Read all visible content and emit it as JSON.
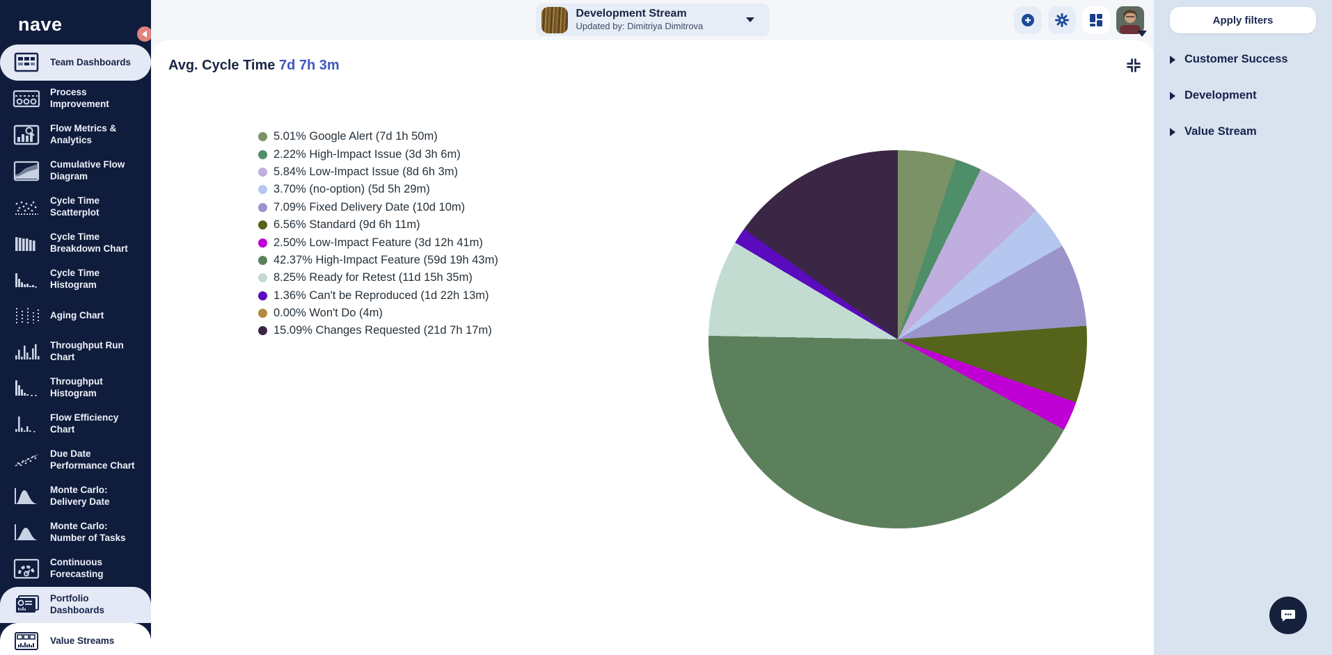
{
  "sidebar": {
    "logo": "nave",
    "items": [
      {
        "label": "Team Dashboards",
        "icon": "team-dashboards-icon",
        "active": true
      },
      {
        "label": "Process Improvement",
        "icon": "process-improvement-icon"
      },
      {
        "label": "Flow Metrics & Analytics",
        "icon": "flow-metrics-icon"
      },
      {
        "label": "Cumulative Flow Diagram",
        "icon": "cumulative-flow-icon"
      },
      {
        "label": "Cycle Time Scatterplot",
        "icon": "cycle-time-scatterplot-icon"
      },
      {
        "label": "Cycle Time Breakdown Chart",
        "icon": "cycle-time-breakdown-icon"
      },
      {
        "label": "Cycle Time Histogram",
        "icon": "cycle-time-histogram-icon"
      },
      {
        "label": "Aging Chart",
        "icon": "aging-chart-icon"
      },
      {
        "label": "Throughput Run Chart",
        "icon": "throughput-run-icon"
      },
      {
        "label": "Throughput Histogram",
        "icon": "throughput-histogram-icon"
      },
      {
        "label": "Flow Efficiency Chart",
        "icon": "flow-efficiency-icon"
      },
      {
        "label": "Due Date Performance Chart",
        "icon": "due-date-performance-icon"
      },
      {
        "label": "Monte Carlo: Delivery Date",
        "icon": "monte-carlo-delivery-icon"
      },
      {
        "label": "Monte Carlo: Number of Tasks",
        "icon": "monte-carlo-tasks-icon"
      },
      {
        "label": "Continuous Forecasting",
        "icon": "continuous-forecasting-icon"
      },
      {
        "label": "Portfolio Dashboards",
        "icon": "portfolio-dashboards-icon",
        "active": true,
        "variant": "light"
      },
      {
        "label": "Value Streams",
        "icon": "value-streams-icon",
        "active": true,
        "variant": "white"
      }
    ]
  },
  "topbar": {
    "board_name": "Development Stream",
    "board_meta": "Updated by: Dimitriya Dimitrova"
  },
  "chart": {
    "title": "Avg. Cycle Time",
    "value": "7d 7h 3m"
  },
  "chart_data": {
    "type": "pie",
    "title": "Avg. Cycle Time",
    "total_label": "7d 7h 3m",
    "legend_position": "left",
    "start_angle_deg": 0,
    "direction": "clockwise",
    "items": [
      {
        "label": "Google Alert",
        "pct": 5.01,
        "duration": "7d 1h 50m",
        "color": "#7b9166"
      },
      {
        "label": "High-Impact Issue",
        "pct": 2.22,
        "duration": "3d 3h 6m",
        "color": "#4e8e68"
      },
      {
        "label": "Low-Impact Issue",
        "pct": 5.84,
        "duration": "8d 6h 3m",
        "color": "#bfaede"
      },
      {
        "label": "(no-option)",
        "pct": 3.7,
        "duration": "5d 5h 29m",
        "color": "#b6c7ef"
      },
      {
        "label": "Fixed Delivery Date",
        "pct": 7.09,
        "duration": "10d 10m",
        "color": "#9a94cb"
      },
      {
        "label": "Standard",
        "pct": 6.56,
        "duration": "9d 6h 11m",
        "color": "#55641a"
      },
      {
        "label": "Low-Impact Feature",
        "pct": 2.5,
        "duration": "3d 12h 41m",
        "color": "#bf00d4"
      },
      {
        "label": "High-Impact Feature",
        "pct": 42.37,
        "duration": "59d 19h 43m",
        "color": "#5d805c"
      },
      {
        "label": "Ready for Retest",
        "pct": 8.25,
        "duration": "11d 15h 35m",
        "color": "#c2dcd1"
      },
      {
        "label": "Can't be Reproduced",
        "pct": 1.36,
        "duration": "1d 22h 13m",
        "color": "#5a0bbd"
      },
      {
        "label": "Won't Do",
        "pct": 0.0,
        "duration": "4m",
        "color": "#b3873d"
      },
      {
        "label": "Changes Requested",
        "pct": 15.09,
        "duration": "21d 7h 17m",
        "color": "#3b2745"
      }
    ]
  },
  "filters": {
    "apply_label": "Apply filters",
    "sections": [
      {
        "label": "Customer Success"
      },
      {
        "label": "Development"
      },
      {
        "label": "Value Stream"
      }
    ]
  }
}
